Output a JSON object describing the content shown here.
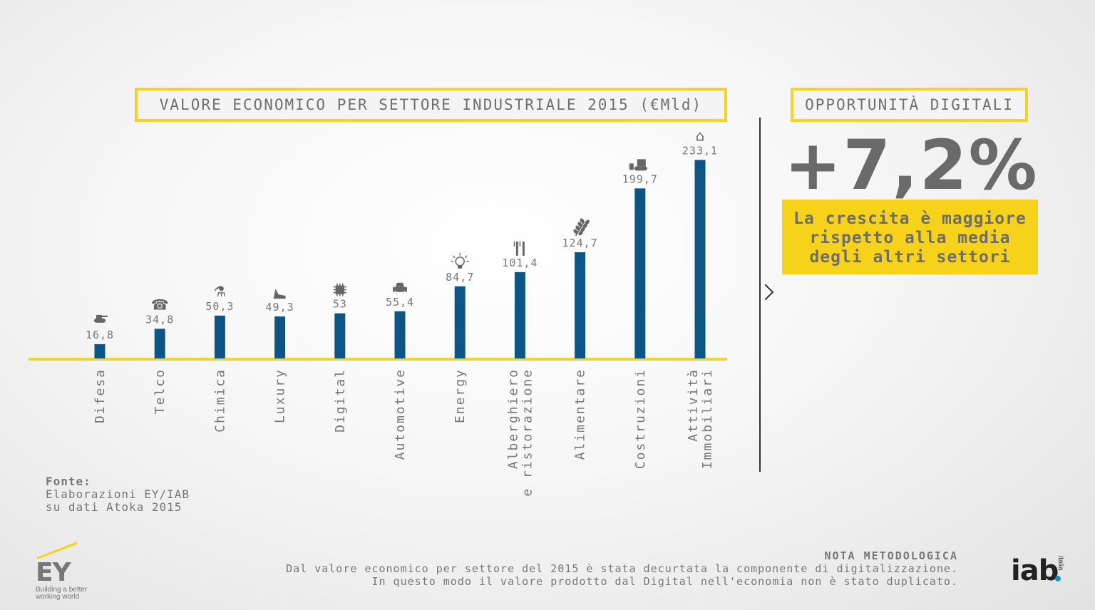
{
  "chart_title": "VALORE ECONOMICO PER SETTORE INDUSTRIALE 2015 (€Mld)",
  "opportunity_title": "OPPORTUNITÀ DIGITALI",
  "opportunity_value": "+7,2%",
  "growth_text": [
    "La crescita è maggiore",
    "rispetto alla media",
    "degli altri settori"
  ],
  "source": {
    "label": "Fonte:",
    "lines": [
      "Elaborazioni EY/IAB",
      "su dati Atoka 2015"
    ]
  },
  "note": {
    "label": "NOTA METODOLOGICA",
    "lines": [
      "Dal valore economico per settore del 2015 è stata decurtata la componente di digitalizzazione.",
      "In questo modo il valore prodotto dal Digital nell'economia non è stato duplicato."
    ]
  },
  "logos": {
    "ey": "EY",
    "ey_tagline": [
      "Building a better",
      "working world"
    ],
    "iab": "iab",
    "iab_sub": "italia"
  },
  "colors": {
    "bar": "#0b5686",
    "accent": "#f3d425",
    "text": "#777777"
  },
  "chart_data": {
    "type": "bar",
    "title": "VALORE ECONOMICO PER SETTORE INDUSTRIALE 2015 (€Mld)",
    "xlabel": "",
    "ylabel": "",
    "ylim": [
      0,
      250
    ],
    "grid": false,
    "categories": [
      [
        "Difesa"
      ],
      [
        "Telco"
      ],
      [
        "Chimica"
      ],
      [
        "Luxury"
      ],
      [
        "Digital"
      ],
      [
        "Automotive"
      ],
      [
        "Energy"
      ],
      [
        "Alberghiero",
        "e ristorazione"
      ],
      [
        "Alimentare"
      ],
      [
        "Costruzioni"
      ],
      [
        "Attività",
        "Immobiliari"
      ]
    ],
    "values": [
      16.8,
      34.8,
      50.3,
      49.3,
      53,
      55.4,
      84.7,
      101.4,
      124.7,
      199.7,
      233.1
    ],
    "value_labels": [
      "16,8",
      "34,8",
      "50,3",
      "49,3",
      "53",
      "55,4",
      "84,7",
      "101,4",
      "124,7",
      "199,7",
      "233,1"
    ],
    "icons": [
      "tank-icon",
      "phone-icon",
      "flask-icon",
      "high-heel-icon",
      "chip-icon",
      "car-icon",
      "lightbulb-icon",
      "cutlery-icon",
      "wheat-icon",
      "bulldozer-icon",
      "house-icon"
    ]
  }
}
